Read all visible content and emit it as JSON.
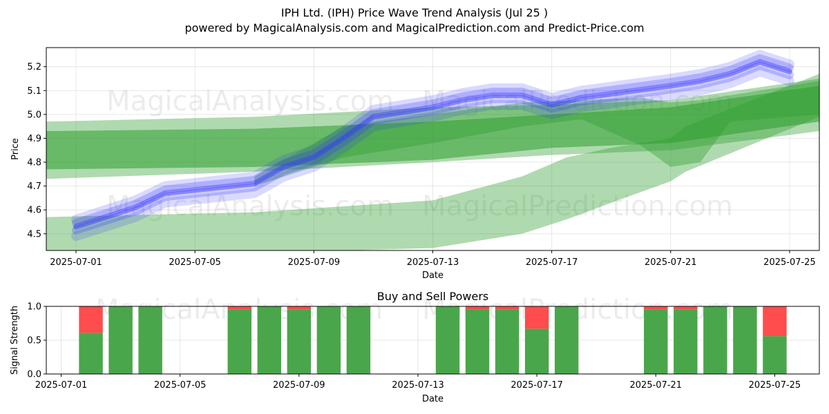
{
  "header": {
    "title": "IPH Ltd. (IPH) Price Wave Trend Analysis (Jul 25 )",
    "subtitle": "powered by MagicalAnalysis.com and MagicalPrediction.com and Predict-Price.com"
  },
  "watermarks": [
    "MagicalAnalysis.com",
    "MagicalPrediction.com",
    "MagicalAnalysis.com",
    "MagicalPrediction.com"
  ],
  "colors": {
    "wave": "#2e9e2e",
    "price": "#3333ff",
    "buy": "#4aa64a",
    "sell": "#ff4c4c",
    "grid": "#e6e6e6"
  },
  "chart_data": [
    {
      "type": "area",
      "title": "",
      "xlabel": "Date",
      "ylabel": "Price",
      "xlim": [
        "2025-06-30",
        "2025-07-26"
      ],
      "ylim": [
        4.43,
        5.28
      ],
      "grid": true,
      "x_ticks": [
        "2025-07-01",
        "2025-07-05",
        "2025-07-09",
        "2025-07-13",
        "2025-07-17",
        "2025-07-21",
        "2025-07-25"
      ],
      "y_ticks": [
        4.5,
        4.6,
        4.7,
        4.8,
        4.9,
        5.0,
        5.1,
        5.2
      ],
      "bands": [
        {
          "x": [
            "2025-06-30",
            "2025-07-07",
            "2025-07-13",
            "2025-07-17",
            "2025-07-21",
            "2025-07-26"
          ],
          "upper": [
            4.97,
            4.99,
            5.03,
            5.04,
            5.06,
            5.15
          ],
          "lower": [
            4.73,
            4.76,
            4.8,
            4.83,
            4.85,
            4.93
          ]
        },
        {
          "x": [
            "2025-06-30",
            "2025-07-07",
            "2025-07-13",
            "2025-07-17",
            "2025-07-21",
            "2025-07-26"
          ],
          "upper": [
            4.93,
            4.94,
            4.97,
            5.0,
            5.03,
            5.12
          ],
          "lower": [
            4.77,
            4.78,
            4.81,
            4.86,
            4.88,
            4.97
          ]
        },
        {
          "x": [
            "2025-06-30",
            "2025-07-07",
            "2025-07-13",
            "2025-07-16",
            "2025-07-17.5",
            "2025-07-19",
            "2025-07-21",
            "2025-07-21.5",
            "2025-07-26"
          ],
          "upper": [
            4.57,
            4.59,
            4.64,
            4.74,
            4.82,
            4.86,
            4.9,
            4.95,
            5.17
          ],
          "lower": [
            4.43,
            4.42,
            4.44,
            4.5,
            4.56,
            4.63,
            4.72,
            4.76,
            4.99
          ]
        },
        {
          "x": [
            "2025-07-07",
            "2025-07-10",
            "2025-07-13",
            "2025-07-16",
            "2025-07-18",
            "2025-07-20",
            "2025-07-21",
            "2025-07-22",
            "2025-07-23",
            "2025-07-26"
          ],
          "upper": [
            4.74,
            4.95,
            5.0,
            5.05,
            5.06,
            5.07,
            5.05,
            5.06,
            5.08,
            5.14
          ],
          "lower": [
            4.7,
            4.82,
            4.88,
            4.95,
            4.98,
            4.87,
            4.78,
            4.8,
            4.97,
            5.0
          ]
        }
      ],
      "series": [
        {
          "x": [
            "2025-07-01",
            "2025-07-02",
            "2025-07-03",
            "2025-07-04",
            "2025-07-07",
            "2025-07-08",
            "2025-07-09",
            "2025-07-10",
            "2025-07-11",
            "2025-07-13",
            "2025-07-14",
            "2025-07-15",
            "2025-07-16",
            "2025-07-17",
            "2025-07-18",
            "2025-07-21",
            "2025-07-22",
            "2025-07-23",
            "2025-07-24",
            "2025-07-25"
          ],
          "y": [
            4.53,
            4.57,
            4.61,
            4.67,
            4.71,
            4.78,
            4.82,
            4.9,
            4.99,
            5.03,
            5.06,
            5.08,
            5.08,
            5.04,
            5.07,
            5.12,
            5.14,
            5.17,
            5.22,
            5.18
          ]
        }
      ]
    },
    {
      "type": "bar",
      "title": "Buy and Sell Powers",
      "xlabel": "Date",
      "ylabel": "Signal Strength",
      "ylim": [
        0,
        1
      ],
      "y_ticks": [
        "0.0",
        "0.5",
        "1.0"
      ],
      "x_ticks": [
        "2025-07-01",
        "2025-07-05",
        "2025-07-09",
        "2025-07-13",
        "2025-07-17",
        "2025-07-21",
        "2025-07-25"
      ],
      "categories": [
        "2025-07-02",
        "2025-07-03",
        "2025-07-04",
        "2025-07-07",
        "2025-07-08",
        "2025-07-09",
        "2025-07-10",
        "2025-07-11",
        "2025-07-14",
        "2025-07-15",
        "2025-07-16",
        "2025-07-17",
        "2025-07-18",
        "2025-07-21",
        "2025-07-22",
        "2025-07-23",
        "2025-07-24",
        "2025-07-25"
      ],
      "series": [
        {
          "name": "Buy",
          "values": [
            0.61,
            1.0,
            1.0,
            0.95,
            1.0,
            0.95,
            1.0,
            1.0,
            1.0,
            0.95,
            0.95,
            0.67,
            1.0,
            0.95,
            0.95,
            1.0,
            1.0,
            0.56
          ]
        },
        {
          "name": "Sell",
          "values": [
            0.39,
            0.0,
            0.0,
            0.05,
            0.0,
            0.05,
            0.0,
            0.0,
            0.0,
            0.05,
            0.05,
            0.33,
            0.0,
            0.05,
            0.05,
            0.0,
            0.0,
            0.44
          ]
        }
      ]
    }
  ]
}
